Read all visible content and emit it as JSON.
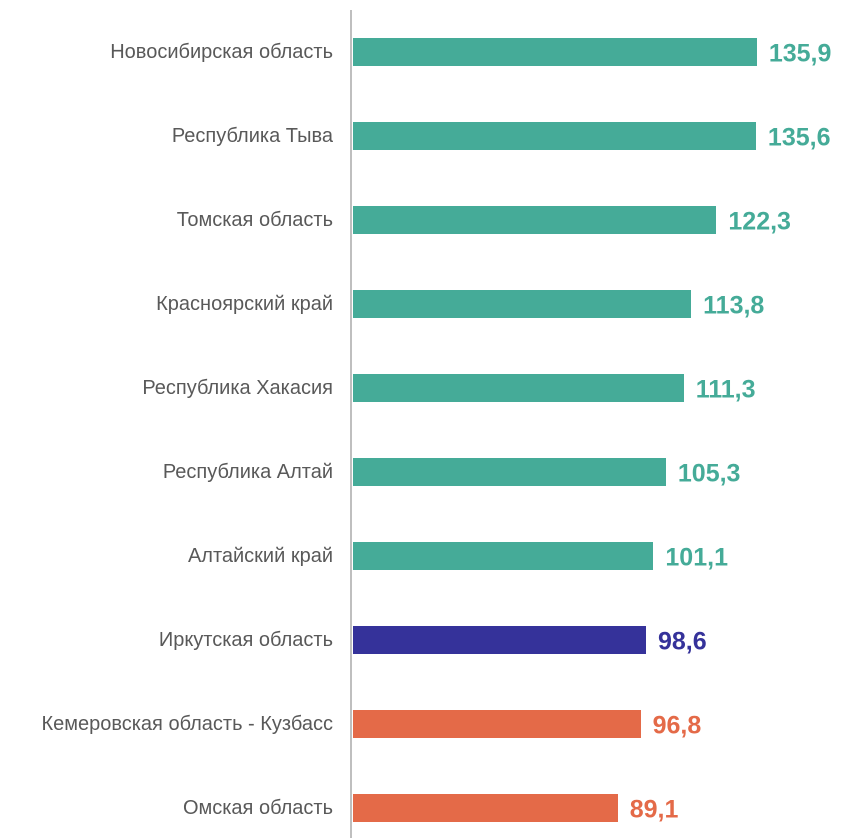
{
  "chart_data": {
    "type": "bar",
    "orientation": "horizontal",
    "categories": [
      "Новосибирская область",
      "Республика Тыва",
      "Томская область",
      "Красноярский край",
      "Республика Хакасия",
      "Республика Алтай",
      "Алтайский край",
      "Иркутская область",
      "Кемеровская область - Кузбасс",
      "Омская область"
    ],
    "values": [
      135.9,
      135.6,
      122.3,
      113.8,
      111.3,
      105.3,
      101.1,
      98.6,
      96.8,
      89.1
    ],
    "value_labels": [
      "135,9",
      "135,6",
      "122,3",
      "113,8",
      "111,3",
      "105,3",
      "101,1",
      "98,6",
      "96,8",
      "89,1"
    ],
    "colors": [
      "#45ab98",
      "#45ab98",
      "#45ab98",
      "#45ab98",
      "#45ab98",
      "#45ab98",
      "#45ab98",
      "#35329a",
      "#e46a48",
      "#e46a48"
    ],
    "xlim": [
      0,
      140
    ]
  }
}
